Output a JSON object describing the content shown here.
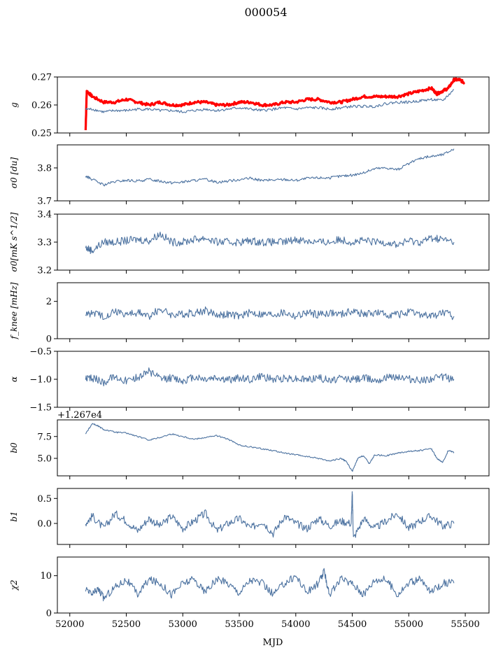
{
  "title": "000054",
  "xlabel": "MJD",
  "offset_label": "+1.267e4",
  "line_color": "#4c72a0",
  "highlight_color": "#ff0000",
  "chart_data": [
    {
      "type": "line",
      "ylabel": "g",
      "ylim": [
        0.25,
        0.27
      ],
      "yticks": [
        "0.25",
        "0.26",
        "0.27"
      ],
      "series": [
        {
          "color": "#ff0000",
          "x": [
            52140,
            52150,
            52200,
            52300,
            52400,
            52500,
            52600,
            52700,
            52800,
            52900,
            53000,
            53100,
            53200,
            53300,
            53400,
            53500,
            53600,
            53700,
            53800,
            53900,
            54000,
            54100,
            54200,
            54300,
            54400,
            54500,
            54600,
            54700,
            54800,
            54900,
            55000,
            55100,
            55200,
            55250,
            55300,
            55350,
            55400,
            55450,
            55490
          ],
          "y": [
            0.251,
            0.265,
            0.263,
            0.261,
            0.261,
            0.262,
            0.261,
            0.26,
            0.261,
            0.26,
            0.26,
            0.261,
            0.261,
            0.26,
            0.26,
            0.261,
            0.261,
            0.26,
            0.26,
            0.261,
            0.261,
            0.262,
            0.262,
            0.261,
            0.261,
            0.262,
            0.263,
            0.263,
            0.263,
            0.263,
            0.264,
            0.265,
            0.266,
            0.264,
            0.265,
            0.266,
            0.269,
            0.269,
            0.268
          ]
        },
        {
          "color": "#4c72a0",
          "x": [
            52140,
            52200,
            52300,
            52400,
            52500,
            52600,
            52700,
            52800,
            52900,
            53000,
            53100,
            53200,
            53300,
            53400,
            53500,
            53600,
            53700,
            53800,
            53900,
            54000,
            54100,
            54200,
            54300,
            54400,
            54500,
            54600,
            54700,
            54800,
            54900,
            55000,
            55100,
            55200,
            55300,
            55400
          ],
          "y": [
            0.2585,
            0.2585,
            0.2575,
            0.258,
            0.258,
            0.2585,
            0.2585,
            0.258,
            0.258,
            0.2575,
            0.258,
            0.2585,
            0.258,
            0.2585,
            0.259,
            0.2585,
            0.258,
            0.2585,
            0.259,
            0.2585,
            0.259,
            0.259,
            0.2585,
            0.259,
            0.2595,
            0.2595,
            0.2595,
            0.2605,
            0.261,
            0.261,
            0.2615,
            0.262,
            0.2615,
            0.2655
          ]
        }
      ]
    },
    {
      "type": "line",
      "ylabel": "σ0 [du]",
      "ylim": [
        3.7,
        3.87
      ],
      "yticks": [
        "3.7",
        "3.8"
      ],
      "series": [
        {
          "color": "#4c72a0",
          "x": [
            52140,
            52200,
            52300,
            52400,
            52500,
            52600,
            52700,
            52800,
            52900,
            53000,
            53100,
            53200,
            53300,
            53400,
            53500,
            53600,
            53700,
            53800,
            53900,
            54000,
            54100,
            54200,
            54300,
            54400,
            54500,
            54600,
            54700,
            54800,
            54900,
            55000,
            55100,
            55200,
            55300,
            55400
          ],
          "y": [
            3.775,
            3.765,
            3.748,
            3.758,
            3.762,
            3.76,
            3.765,
            3.76,
            3.755,
            3.757,
            3.762,
            3.765,
            3.757,
            3.76,
            3.765,
            3.768,
            3.762,
            3.763,
            3.765,
            3.762,
            3.768,
            3.77,
            3.77,
            3.775,
            3.778,
            3.785,
            3.798,
            3.8,
            3.795,
            3.812,
            3.83,
            3.835,
            3.84,
            3.858
          ]
        }
      ]
    },
    {
      "type": "line",
      "ylabel": "σ0[mK s^1/2]",
      "ylim": [
        3.2,
        3.4
      ],
      "yticks": [
        "3.2",
        "3.3",
        "3.4"
      ],
      "series": [
        {
          "color": "#4c72a0",
          "x": [
            52140,
            52200,
            52300,
            52400,
            52500,
            52600,
            52700,
            52800,
            52900,
            53000,
            53100,
            53200,
            53300,
            53400,
            53500,
            53600,
            53700,
            53800,
            53900,
            54000,
            54100,
            54200,
            54300,
            54400,
            54500,
            54600,
            54700,
            54800,
            54900,
            55000,
            55100,
            55200,
            55300,
            55400
          ],
          "y": [
            3.28,
            3.27,
            3.3,
            3.3,
            3.305,
            3.31,
            3.305,
            3.33,
            3.3,
            3.3,
            3.31,
            3.315,
            3.3,
            3.3,
            3.3,
            3.305,
            3.3,
            3.3,
            3.3,
            3.31,
            3.305,
            3.3,
            3.3,
            3.31,
            3.3,
            3.305,
            3.3,
            3.3,
            3.29,
            3.305,
            3.3,
            3.315,
            3.31,
            3.3
          ]
        }
      ]
    },
    {
      "type": "line",
      "ylabel": "f_knee [mHz]",
      "ylim": [
        0,
        3
      ],
      "yticks": [
        "0",
        "2"
      ],
      "series": [
        {
          "color": "#4c72a0",
          "x": [
            52140,
            52200,
            52300,
            52400,
            52500,
            52600,
            52700,
            52800,
            52900,
            53000,
            53100,
            53200,
            53300,
            53400,
            53500,
            53600,
            53700,
            53800,
            53900,
            54000,
            54100,
            54200,
            54300,
            54400,
            54500,
            54600,
            54700,
            54800,
            54900,
            55000,
            55100,
            55200,
            55300,
            55400
          ],
          "y": [
            1.3,
            1.4,
            1.2,
            1.5,
            1.3,
            1.4,
            1.2,
            1.6,
            1.3,
            1.3,
            1.4,
            1.5,
            1.3,
            1.3,
            1.2,
            1.4,
            1.3,
            1.3,
            1.4,
            1.2,
            1.4,
            1.3,
            1.4,
            1.3,
            1.5,
            1.3,
            1.4,
            1.3,
            1.3,
            1.4,
            1.3,
            1.2,
            1.4,
            1.2
          ]
        }
      ]
    },
    {
      "type": "line",
      "ylabel": "α",
      "ylim": [
        -1.5,
        -0.5
      ],
      "yticks": [
        "−1.5",
        "−1.0",
        "−0.5"
      ],
      "series": [
        {
          "color": "#4c72a0",
          "x": [
            52140,
            52200,
            52300,
            52400,
            52500,
            52600,
            52700,
            52800,
            52900,
            53000,
            53100,
            53200,
            53300,
            53400,
            53500,
            53600,
            53700,
            53800,
            53900,
            54000,
            54100,
            54200,
            54300,
            54400,
            54500,
            54600,
            54700,
            54800,
            54900,
            55000,
            55100,
            55200,
            55300,
            55400
          ],
          "y": [
            -1.0,
            -0.98,
            -1.05,
            -0.95,
            -1.02,
            -0.97,
            -0.85,
            -1.0,
            -0.98,
            -1.03,
            -0.96,
            -1.0,
            -0.97,
            -1.02,
            -0.98,
            -1.0,
            -0.95,
            -1.01,
            -0.98,
            -0.99,
            -1.0,
            -0.96,
            -1.03,
            -0.98,
            -1.0,
            -0.97,
            -1.01,
            -0.98,
            -0.95,
            -1.0,
            -1.02,
            -0.98,
            -0.96,
            -1.0
          ]
        }
      ]
    },
    {
      "type": "line",
      "ylabel": "b0",
      "ylim": [
        3.0,
        9.4
      ],
      "offset": "+1.267e4",
      "yticks": [
        "5.0",
        "7.5"
      ],
      "series": [
        {
          "color": "#4c72a0",
          "x": [
            52140,
            52200,
            52250,
            52300,
            52400,
            52500,
            52600,
            52700,
            52800,
            52900,
            53000,
            53100,
            53200,
            53300,
            53400,
            53500,
            53600,
            53700,
            53800,
            53900,
            54000,
            54100,
            54200,
            54300,
            54400,
            54450,
            54500,
            54550,
            54600,
            54650,
            54700,
            54800,
            54900,
            55000,
            55100,
            55200,
            55250,
            55300,
            55350,
            55400
          ],
          "y": [
            7.8,
            9.0,
            8.7,
            8.3,
            8.0,
            7.9,
            7.5,
            7.1,
            7.4,
            7.8,
            7.5,
            7.2,
            7.4,
            7.6,
            7.2,
            6.5,
            6.3,
            6.1,
            5.9,
            5.6,
            5.4,
            5.2,
            5.0,
            4.7,
            5.0,
            4.6,
            3.5,
            5.0,
            5.3,
            4.4,
            5.4,
            5.3,
            5.6,
            5.8,
            5.9,
            6.1,
            5.0,
            4.5,
            5.9,
            5.7
          ]
        }
      ]
    },
    {
      "type": "line",
      "ylabel": "b1",
      "ylim": [
        -0.42,
        0.7
      ],
      "yticks": [
        "0.0",
        "0.5"
      ],
      "series": [
        {
          "color": "#4c72a0",
          "x": [
            52140,
            52200,
            52300,
            52400,
            52500,
            52600,
            52700,
            52800,
            52900,
            53000,
            53100,
            53200,
            53300,
            53400,
            53500,
            53600,
            53700,
            53800,
            53900,
            54000,
            54100,
            54200,
            54300,
            54400,
            54490,
            54500,
            54510,
            54600,
            54700,
            54800,
            54900,
            55000,
            55100,
            55200,
            55300,
            55400
          ],
          "y": [
            0.0,
            0.15,
            -0.1,
            0.2,
            0.05,
            -0.15,
            0.1,
            -0.05,
            0.15,
            -0.1,
            0.05,
            0.2,
            -0.15,
            0.0,
            0.1,
            -0.1,
            0.05,
            -0.2,
            0.15,
            0.0,
            -0.1,
            0.1,
            -0.05,
            0.05,
            0.0,
            0.62,
            -0.3,
            0.1,
            -0.1,
            0.05,
            0.2,
            -0.1,
            0.05,
            0.15,
            -0.05,
            0.0
          ]
        }
      ]
    },
    {
      "type": "line",
      "ylabel": "χ2",
      "ylim": [
        0,
        15
      ],
      "yticks": [
        "0",
        "10"
      ],
      "series": [
        {
          "color": "#4c72a0",
          "x": [
            52140,
            52200,
            52250,
            52300,
            52400,
            52500,
            52600,
            52700,
            52800,
            52900,
            53000,
            53100,
            53200,
            53300,
            53400,
            53500,
            53600,
            53700,
            53800,
            53900,
            54000,
            54100,
            54200,
            54250,
            54300,
            54400,
            54500,
            54600,
            54700,
            54800,
            54900,
            55000,
            55100,
            55200,
            55300,
            55400
          ],
          "y": [
            6.0,
            5.0,
            6.5,
            4.0,
            7.0,
            9.0,
            5.0,
            9.0,
            8.0,
            5.0,
            8.0,
            9.0,
            5.5,
            9.0,
            8.0,
            5.5,
            9.0,
            8.0,
            5.0,
            8.0,
            10.0,
            5.5,
            8.0,
            11.0,
            5.0,
            9.0,
            8.0,
            5.0,
            9.0,
            9.0,
            5.0,
            8.0,
            9.0,
            5.5,
            8.0,
            8.0
          ]
        }
      ]
    }
  ],
  "xaxis": {
    "xlim": [
      51890,
      55710
    ],
    "ticks": [
      52000,
      52500,
      53000,
      53500,
      54000,
      54500,
      55000,
      55500
    ]
  }
}
